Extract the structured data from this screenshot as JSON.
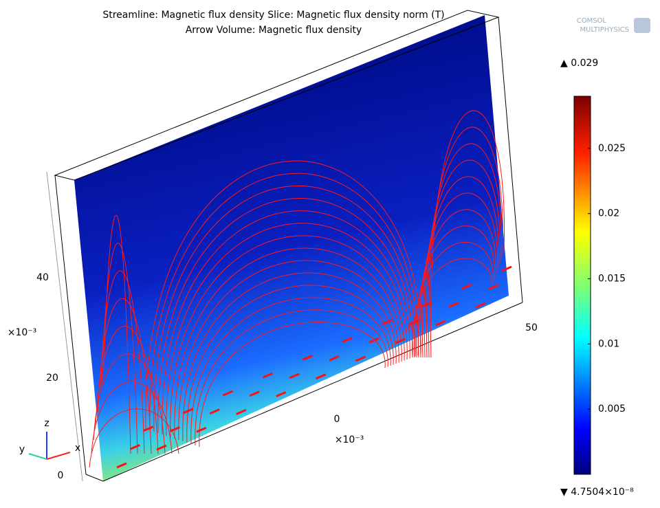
{
  "header": {
    "line1": "Streamline: Magnetic flux density  Slice: Magnetic flux density norm (T)",
    "line2": "Arrow Volume: Magnetic flux density"
  },
  "logo": {
    "line1": "COMSOL",
    "line2": "MULTIPHYSICS"
  },
  "plot": {
    "axis_labels": [
      "40",
      "×10⁻³",
      "20",
      "0",
      "50",
      "0",
      "×10⁻³"
    ],
    "triad": [
      "z",
      "y",
      "x"
    ]
  },
  "colorbar": {
    "max_label": "▲ 0.029",
    "min_label": "▼ 4.7504×10⁻⁸",
    "lim": [
      4.7504e-08,
      0.029
    ],
    "ticks": [
      0.005,
      0.01,
      0.015,
      0.02,
      0.025
    ]
  }
}
